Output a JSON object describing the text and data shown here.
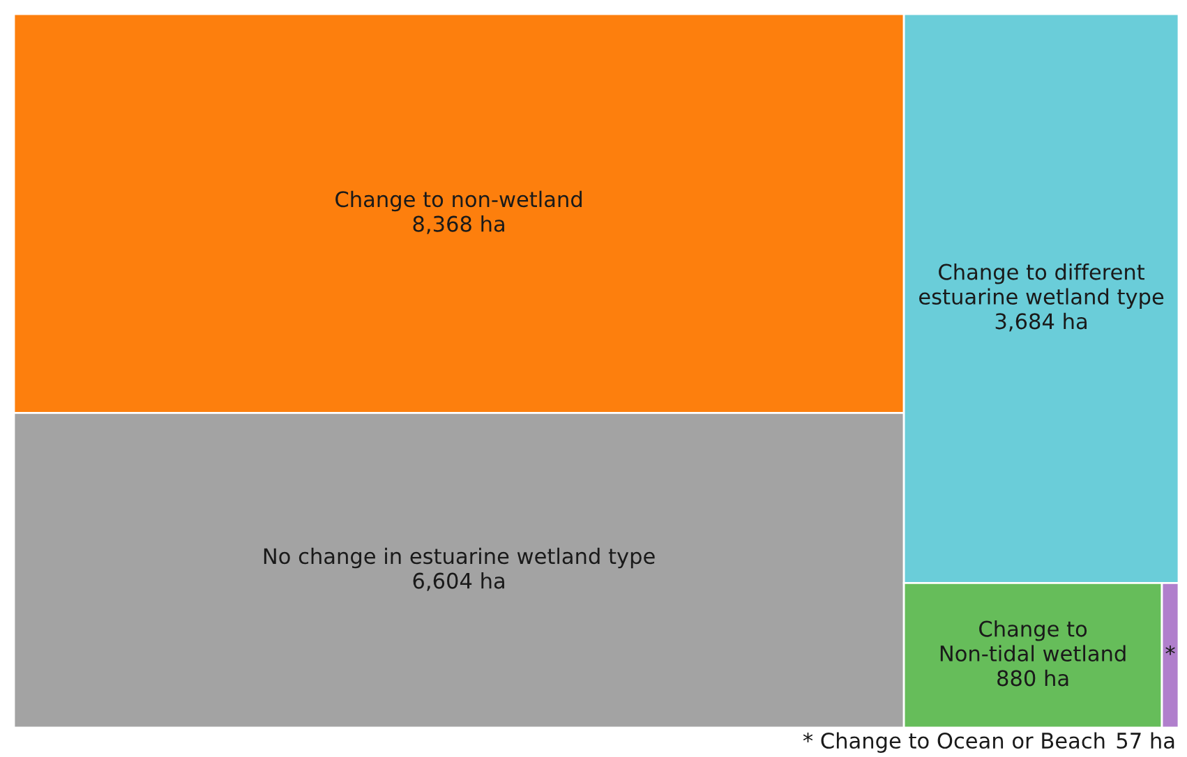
{
  "chart_data": {
    "type": "other",
    "categories": [
      "Change to non-wetland",
      "No change in estuarine wetland type",
      "Change to different\nestuarine wetland type",
      "Change to\nNon-tidal wetland",
      "*"
    ],
    "values": [
      8368,
      6604,
      3684,
      880,
      57
    ],
    "value_labels": [
      "8,368 ha",
      "6,604 ha",
      "3,684 ha",
      "880 ha",
      "57 ha"
    ],
    "colors": [
      "#fd7f0d",
      "#a3a3a3",
      "#6acdd9",
      "#66bd5a",
      "#b07fcc"
    ],
    "annotations": [
      "* Change to Ocean or Beach"
    ]
  }
}
